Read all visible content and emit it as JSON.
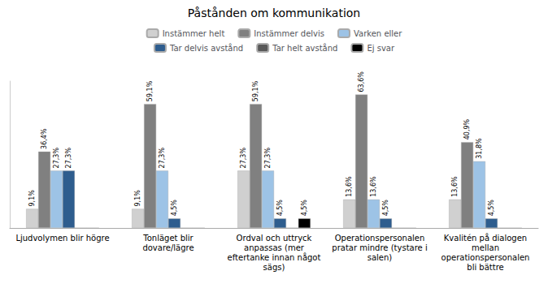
{
  "chart_data": {
    "type": "bar",
    "title": "Påstånden om kommunikation",
    "categories": [
      "Ljudvolymen blir högre",
      "Tonläget blir\ndovare/lägre",
      "Ordval och uttryck\nanpassas (mer\neftertanke innan något\nsägs)",
      "Operationspersonalen\npratar mindre (tystare i\nsalen)",
      "Kvalitén på dialogen\nmellan\noperationspersonalen\nbli bättre"
    ],
    "series": [
      {
        "name": "Instämmer helt",
        "color": "#d0d0d0",
        "values": [
          9.1,
          9.1,
          27.3,
          13.6,
          13.6
        ],
        "value_labels": [
          "9,1%",
          "9,1%",
          "27,3%",
          "13,6%",
          "13,6%"
        ]
      },
      {
        "name": "Instämmer delvis",
        "color": "#808080",
        "values": [
          36.4,
          59.1,
          59.1,
          63.6,
          40.9
        ],
        "value_labels": [
          "36,4%",
          "59,1%",
          "59,1%",
          "63,6%",
          "40,9%"
        ]
      },
      {
        "name": "Varken eller",
        "color": "#9dc3e6",
        "values": [
          27.3,
          27.3,
          27.3,
          13.6,
          31.8
        ],
        "value_labels": [
          "27,3%",
          "27,3%",
          "27,3%",
          "13,6%",
          "31,8%"
        ]
      },
      {
        "name": "Tar delvis avstånd",
        "color": "#2e5d8e",
        "values": [
          27.3,
          4.5,
          4.5,
          4.5,
          4.5
        ],
        "value_labels": [
          "27,3%",
          "4,5%",
          "4,5%",
          "4,5%",
          "4,5%"
        ]
      },
      {
        "name": "Tar helt avstånd",
        "color": "#595959",
        "values": [
          0.0,
          0.0,
          0.0,
          0.0,
          0.0
        ],
        "value_labels": [
          null,
          null,
          null,
          null,
          null
        ]
      },
      {
        "name": "Ej svar",
        "color": "#000000",
        "values": [
          0.0,
          0.0,
          4.5,
          0.0,
          0.0
        ],
        "value_labels": [
          null,
          null,
          "4,5%",
          null,
          null
        ]
      }
    ],
    "ylim": [
      0,
      70
    ],
    "tick_labels": "x",
    "grid": false,
    "legend": "top",
    "data_labels": true
  }
}
